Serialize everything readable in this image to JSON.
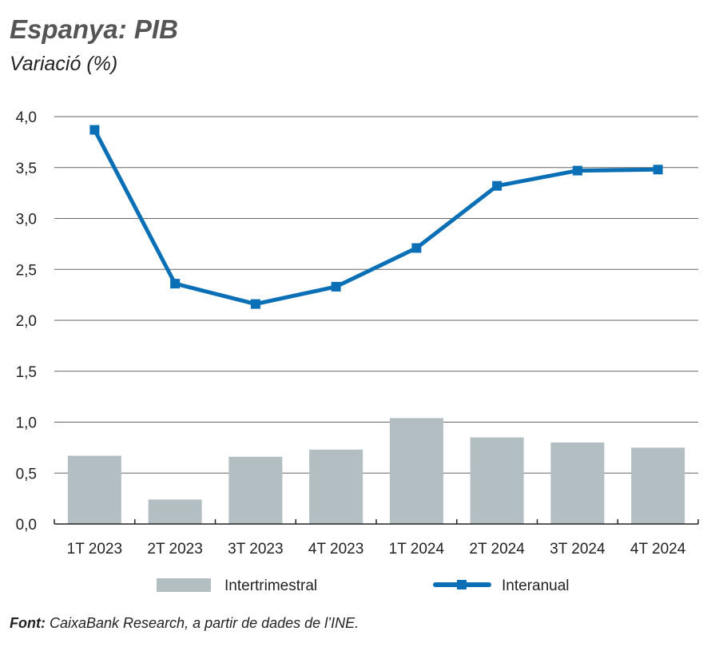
{
  "chart_data": {
    "type": "bar+line",
    "title": "Espanya: PIB",
    "subtitle": "Variació (%)",
    "categories": [
      "1T 2023",
      "2T 2023",
      "3T 2023",
      "4T 2023",
      "1T 2024",
      "2T 2024",
      "3T 2024",
      "4T 2024"
    ],
    "series": [
      {
        "name": "Intertrimestral",
        "type": "bar",
        "color": "#b3bec3",
        "values": [
          0.67,
          0.24,
          0.66,
          0.73,
          1.04,
          0.85,
          0.8,
          0.75
        ]
      },
      {
        "name": "Interanual",
        "type": "line",
        "color": "#0a6fb5",
        "marker": "square",
        "values": [
          3.87,
          2.36,
          2.16,
          2.33,
          2.71,
          3.32,
          3.47,
          3.48
        ]
      }
    ],
    "ylim": [
      0,
      4
    ],
    "yticks": [
      "0,0",
      "0,5",
      "1,0",
      "1,5",
      "2,0",
      "2,5",
      "3,0",
      "3,5",
      "4,0"
    ],
    "grid": true,
    "legend_position": "bottom"
  },
  "source": {
    "label": "Font:",
    "text": " CaixaBank Research, a partir de dades de l’INE."
  }
}
